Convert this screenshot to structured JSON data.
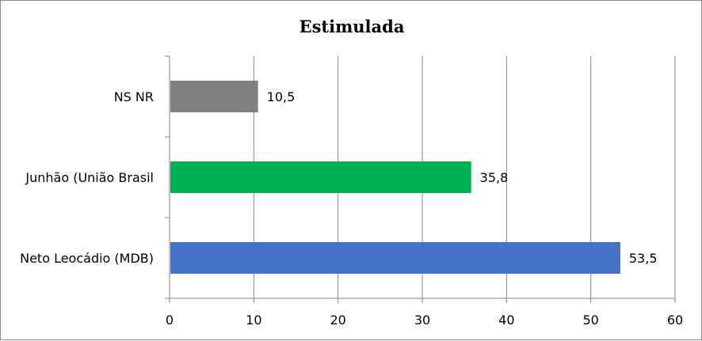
{
  "chart_data": {
    "type": "bar",
    "orientation": "horizontal",
    "title": "Estimulada",
    "categories": [
      "Neto Leocádio (MDB)",
      "Junhão (União Brasil",
      "NS NR"
    ],
    "values": [
      53.5,
      35.8,
      10.5
    ],
    "value_labels": [
      "53,5",
      "35,8",
      "10,5"
    ],
    "colors": [
      "#4472C4",
      "#00B050",
      "#808080"
    ],
    "xlim": [
      0,
      60
    ],
    "xticks": [
      0,
      10,
      20,
      30,
      40,
      50,
      60
    ],
    "grid": "vertical",
    "xlabel": "",
    "ylabel": ""
  }
}
